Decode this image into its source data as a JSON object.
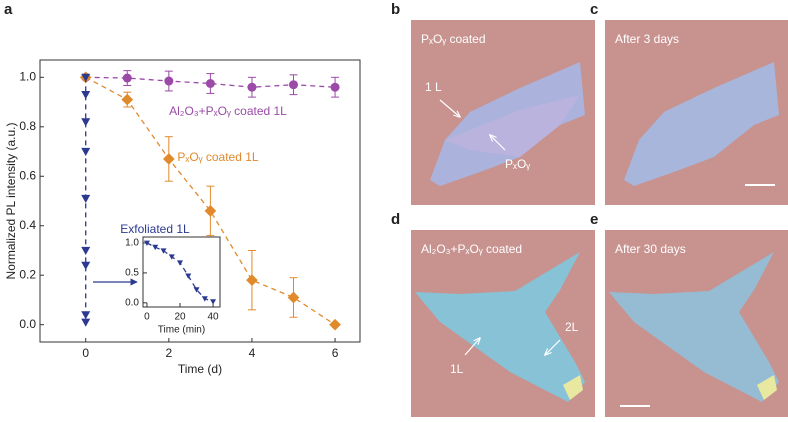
{
  "chart_data": [
    {
      "type": "line",
      "panel_label": "a",
      "xlabel": "Time (d)",
      "ylabel": "Normalized PL intensity (a.u.)",
      "xlim": [
        -1.1,
        6.6
      ],
      "xticks": [
        0,
        2,
        4,
        6
      ],
      "ylim": [
        -0.07,
        1.07
      ],
      "yticks": [
        {
          "value": 0,
          "label": "0.0"
        },
        0.2,
        0.4,
        0.6,
        0.8,
        {
          "value": 1,
          "label": "1.0"
        }
      ],
      "series": [
        {
          "name": "Al₂O₃+PₓOᵧ coated 1L",
          "color": "#9b4aa8",
          "marker": "circle",
          "x": [
            0,
            1,
            2,
            3,
            4,
            5,
            6
          ],
          "values": [
            1.0,
            0.997,
            0.985,
            0.975,
            0.96,
            0.97,
            0.96
          ],
          "errors": [
            null,
            0.03,
            0.04,
            0.04,
            0.04,
            0.04,
            0.04
          ]
        },
        {
          "name": "PₓOᵧ coated 1L",
          "color": "#e08a2c",
          "marker": "diamond",
          "x": [
            0,
            1,
            2,
            3,
            4,
            5,
            6
          ],
          "values": [
            1.0,
            0.91,
            0.67,
            0.46,
            0.18,
            0.11,
            0.0
          ],
          "errors": [
            null,
            0.03,
            0.09,
            0.1,
            0.12,
            0.08,
            null
          ]
        },
        {
          "name": "Exfoliated 1L",
          "color": "#2b3990",
          "marker": "triangle",
          "x": [
            0,
            0,
            0,
            0,
            0,
            0,
            0,
            0,
            0
          ],
          "values": [
            1.0,
            0.93,
            0.82,
            0.7,
            0.51,
            0.3,
            0.24,
            0.04,
            0.01
          ]
        }
      ]
    },
    {
      "type": "line",
      "xlabel": "Time (min)",
      "xlim": [
        -2.4,
        44.2
      ],
      "xticks": [
        0,
        20,
        40
      ],
      "ylim": [
        -0.07,
        1.1
      ],
      "yticks": [
        {
          "value": 0,
          "label": "0.0"
        },
        0.5,
        {
          "value": 1,
          "label": "1.0"
        }
      ],
      "series": [
        {
          "color": "#2b3990",
          "marker": "triangle",
          "x": [
            0,
            5,
            10,
            15,
            20,
            25,
            30,
            35,
            40
          ],
          "values": [
            1.0,
            0.93,
            0.87,
            0.77,
            0.67,
            0.45,
            0.22,
            0.07,
            0.02
          ]
        }
      ]
    }
  ],
  "images": [
    {
      "label": "b",
      "caption": "PₓOᵧ coated",
      "annotations": [
        "1 L",
        "PₓOᵧ"
      ]
    },
    {
      "label": "c",
      "caption": "After 3 days",
      "annotations": []
    },
    {
      "label": "d",
      "caption": "Al₂O₃+PₓOᵧ coated",
      "annotations": [
        "1L",
        "2L"
      ]
    },
    {
      "label": "e",
      "caption": "After 30 days",
      "annotations": []
    }
  ]
}
